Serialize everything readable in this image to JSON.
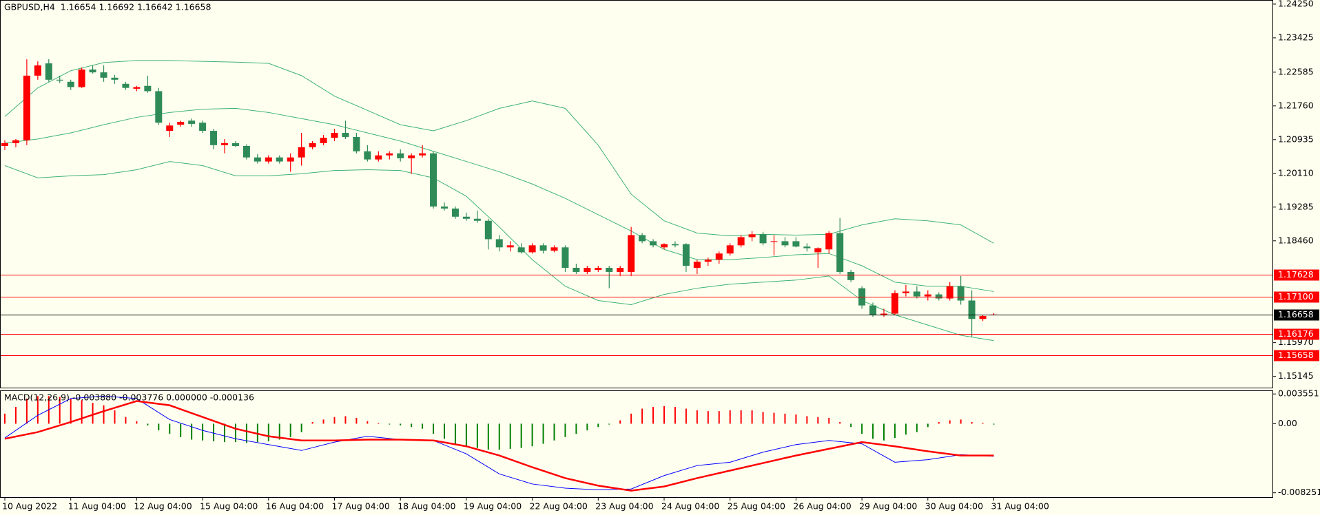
{
  "chart_data": [
    {
      "type": "candlestick",
      "title": "GBPUSD,H4  1.16654 1.16692 1.16642 1.16658",
      "up_color": "#ff0000",
      "down_color": "#2e8b57",
      "open": [
        1.2078,
        1.2085,
        1.2092,
        1.225,
        1.228,
        1.224,
        1.2235,
        1.2222,
        1.2265,
        1.2258,
        1.2245,
        1.223,
        1.2218,
        1.2225,
        1.2212,
        1.2115,
        1.213,
        1.214,
        1.2135,
        1.2115,
        1.208,
        1.2085,
        1.2078,
        1.205,
        1.204,
        1.205,
        1.204,
        1.205,
        1.2075,
        1.2085,
        1.2098,
        1.211,
        1.21,
        1.2065,
        1.2045,
        1.2055,
        1.206,
        1.2048,
        1.2055,
        1.206,
        1.193,
        1.1925,
        1.1905,
        1.19,
        1.1895,
        1.185,
        1.183,
        1.183,
        1.1818,
        1.1835,
        1.1822,
        1.183,
        1.178,
        1.177,
        1.1775,
        1.178,
        1.177,
        1.177,
        1.186,
        1.1845,
        1.183,
        1.1838,
        1.1838,
        1.178,
        1.1795,
        1.18,
        1.1815,
        1.1835,
        1.1855,
        1.1862,
        1.1845,
        1.1845,
        1.1845,
        1.1832,
        1.1818,
        1.1825,
        1.1865,
        1.177,
        1.173,
        1.1688,
        1.1665,
        1.1668,
        1.1718,
        1.1722,
        1.171,
        1.1715,
        1.1705,
        1.1735,
        1.17,
        1.1655,
        1.16654
      ],
      "high": [
        1.2092,
        1.2095,
        1.229,
        1.2285,
        1.229,
        1.225,
        1.224,
        1.227,
        1.2275,
        1.2275,
        1.2252,
        1.2235,
        1.2225,
        1.225,
        1.222,
        1.2135,
        1.214,
        1.2145,
        1.214,
        1.212,
        1.2095,
        1.209,
        1.2082,
        1.2058,
        1.2055,
        1.2055,
        1.206,
        1.211,
        1.209,
        1.2105,
        1.212,
        1.214,
        1.211,
        1.208,
        1.2065,
        1.2065,
        1.207,
        1.206,
        1.208,
        1.2065,
        1.194,
        1.193,
        1.1915,
        1.192,
        1.19,
        1.186,
        1.1845,
        1.184,
        1.184,
        1.184,
        1.1835,
        1.1835,
        1.179,
        1.1785,
        1.1785,
        1.1785,
        1.1785,
        1.188,
        1.1865,
        1.185,
        1.184,
        1.1845,
        1.184,
        1.18,
        1.1805,
        1.182,
        1.184,
        1.186,
        1.187,
        1.1868,
        1.186,
        1.1855,
        1.1855,
        1.184,
        1.183,
        1.187,
        1.1902,
        1.1775,
        1.1735,
        1.1695,
        1.168,
        1.1725,
        1.1738,
        1.1735,
        1.1725,
        1.172,
        1.1745,
        1.176,
        1.1725,
        1.1665,
        1.16692
      ],
      "low": [
        1.2068,
        1.2075,
        1.208,
        1.224,
        1.2235,
        1.2232,
        1.2215,
        1.222,
        1.2255,
        1.2235,
        1.223,
        1.2215,
        1.2212,
        1.2208,
        1.213,
        1.21,
        1.2125,
        1.2125,
        1.211,
        1.207,
        1.206,
        1.2075,
        1.2045,
        1.2035,
        1.2035,
        1.2035,
        1.2015,
        1.203,
        1.207,
        1.208,
        1.209,
        1.2095,
        1.206,
        1.204,
        1.204,
        1.2045,
        1.204,
        1.201,
        1.205,
        1.1925,
        1.192,
        1.19,
        1.1895,
        1.189,
        1.1825,
        1.182,
        1.182,
        1.1815,
        1.1815,
        1.1815,
        1.1818,
        1.177,
        1.1765,
        1.1765,
        1.177,
        1.173,
        1.176,
        1.176,
        1.184,
        1.183,
        1.1825,
        1.183,
        1.177,
        1.1765,
        1.1785,
        1.179,
        1.181,
        1.183,
        1.1845,
        1.1835,
        1.181,
        1.183,
        1.183,
        1.182,
        1.178,
        1.1815,
        1.1765,
        1.1745,
        1.168,
        1.166,
        1.166,
        1.1665,
        1.171,
        1.1705,
        1.17,
        1.17,
        1.17,
        1.169,
        1.161,
        1.165,
        1.16642
      ],
      "close": [
        1.2085,
        1.2092,
        1.225,
        1.2275,
        1.224,
        1.2238,
        1.2222,
        1.2265,
        1.2258,
        1.2245,
        1.224,
        1.222,
        1.2222,
        1.2212,
        1.2135,
        1.2128,
        1.2137,
        1.2132,
        1.2115,
        1.208,
        1.2085,
        1.2078,
        1.205,
        1.204,
        1.205,
        1.204,
        1.205,
        1.2075,
        1.2085,
        1.2098,
        1.211,
        1.21,
        1.2065,
        1.2045,
        1.2055,
        1.206,
        1.2048,
        1.2055,
        1.206,
        1.193,
        1.1925,
        1.1905,
        1.19,
        1.1895,
        1.185,
        1.183,
        1.1835,
        1.1818,
        1.1835,
        1.1822,
        1.183,
        1.178,
        1.177,
        1.178,
        1.178,
        1.177,
        1.178,
        1.186,
        1.1845,
        1.1835,
        1.1838,
        1.1835,
        1.1785,
        1.1795,
        1.18,
        1.1815,
        1.1835,
        1.1855,
        1.1862,
        1.184,
        1.1845,
        1.1835,
        1.1832,
        1.1828,
        1.1828,
        1.1865,
        1.177,
        1.175,
        1.1688,
        1.1665,
        1.1668,
        1.1718,
        1.1722,
        1.171,
        1.1715,
        1.1705,
        1.1735,
        1.17,
        1.1655,
        1.1662,
        1.16658
      ],
      "series": [
        {
          "color": "#3cb371",
          "x": [
            0,
            3,
            6,
            9,
            12,
            15,
            18,
            21,
            24,
            27,
            30,
            33,
            36,
            39,
            42,
            45,
            48,
            51,
            54,
            57,
            60,
            63,
            66,
            69,
            72,
            75,
            78,
            81,
            84,
            87,
            90
          ],
          "values": [
            1.215,
            1.222,
            1.2262,
            1.2282,
            1.2287,
            1.2287,
            1.2285,
            1.2283,
            1.228,
            1.225,
            1.22,
            1.2165,
            1.213,
            1.2115,
            1.214,
            1.217,
            1.2188,
            1.217,
            1.208,
            1.196,
            1.1895,
            1.1865,
            1.1858,
            1.1862,
            1.186,
            1.1862,
            1.1885,
            1.19,
            1.1895,
            1.1885,
            1.184
          ]
        },
        {
          "color": "#3cb371",
          "x": [
            0,
            3,
            6,
            9,
            12,
            15,
            18,
            21,
            24,
            27,
            30,
            33,
            36,
            39,
            42,
            45,
            48,
            51,
            54,
            57,
            60,
            63,
            66,
            69,
            72,
            75,
            78,
            81,
            84,
            87,
            90
          ],
          "values": [
            1.2085,
            1.2095,
            1.211,
            1.213,
            1.2148,
            1.216,
            1.2168,
            1.217,
            1.216,
            1.2145,
            1.213,
            1.211,
            1.209,
            1.2065,
            1.204,
            1.2015,
            1.1985,
            1.195,
            1.191,
            1.187,
            1.1825,
            1.18,
            1.18,
            1.1805,
            1.1812,
            1.1815,
            1.1785,
            1.1745,
            1.1735,
            1.1735,
            1.1722
          ]
        },
        {
          "color": "#3cb371",
          "x": [
            0,
            3,
            6,
            9,
            12,
            15,
            18,
            21,
            24,
            27,
            30,
            33,
            36,
            39,
            42,
            45,
            48,
            51,
            54,
            57,
            60,
            63,
            66,
            69,
            72,
            75,
            78,
            81,
            84,
            87,
            90
          ],
          "values": [
            1.203,
            1.2,
            1.2005,
            1.2008,
            1.202,
            1.204,
            1.203,
            1.2005,
            1.2005,
            1.201,
            1.2018,
            1.202,
            1.2018,
            1.2,
            1.1955,
            1.188,
            1.18,
            1.1735,
            1.17,
            1.169,
            1.1715,
            1.173,
            1.174,
            1.1745,
            1.175,
            1.176,
            1.17,
            1.1665,
            1.164,
            1.1615,
            1.1602
          ]
        }
      ],
      "hlines": [
        {
          "value": 1.17628,
          "color": "#ff0000"
        },
        {
          "value": 1.171,
          "label": "1.17100",
          "color": "#ff0000"
        },
        {
          "value": 1.16658,
          "color": "#000000"
        },
        {
          "value": 1.16176,
          "color": "#ff0000"
        },
        {
          "value": 1.15658,
          "color": "#ff0000"
        }
      ],
      "ylim": [
        1.1487,
        1.2435
      ],
      "yticks": [
        {
          "value": 1.2425,
          "label": "1.24250"
        },
        1.23425,
        1.22585,
        {
          "value": 1.2176,
          "label": "1.21760"
        },
        1.20935,
        {
          "value": 1.2011,
          "label": "1.20110"
        },
        1.19285,
        {
          "value": 1.1846,
          "label": "1.18460"
        },
        {
          "value": 1.1597,
          "label": "1.15970"
        },
        1.15145
      ]
    },
    {
      "type": "macd",
      "title": "MACD(12,26,9) -0.003880 -0.003776 0.000000 -0.000136",
      "categories": [
        "10 Aug 2022",
        null,
        null,
        null,
        null,
        null,
        "11 Aug 04:00",
        null,
        null,
        null,
        null,
        null,
        "12 Aug 04:00",
        null,
        null,
        null,
        null,
        null,
        "15 Aug 04:00",
        null,
        null,
        null,
        null,
        null,
        "16 Aug 04:00",
        null,
        null,
        null,
        null,
        null,
        "17 Aug 04:00",
        null,
        null,
        null,
        null,
        null,
        "18 Aug 04:00",
        null,
        null,
        null,
        null,
        null,
        "19 Aug 04:00",
        null,
        null,
        null,
        null,
        null,
        "22 Aug 04:00",
        null,
        null,
        null,
        null,
        null,
        "23 Aug 04:00",
        null,
        null,
        null,
        null,
        null,
        "24 Aug 04:00",
        null,
        null,
        null,
        null,
        null,
        "25 Aug 04:00",
        null,
        null,
        null,
        null,
        null,
        "26 Aug 04:00",
        null,
        null,
        null,
        null,
        null,
        "29 Aug 04:00",
        null,
        null,
        null,
        null,
        null,
        "30 Aug 04:00",
        null,
        null,
        null,
        null,
        null,
        "31 Aug 04:00"
      ],
      "positive_color": "#ff0000",
      "negative_color": "#008000",
      "values": [
        0.0012,
        0.002,
        0.003,
        0.0033,
        0.0033,
        0.0032,
        0.003,
        0.0028,
        0.0025,
        0.0022,
        0.0016,
        0.0008,
        0.0003,
        -0.0002,
        -0.0008,
        -0.0012,
        -0.0016,
        -0.0019,
        -0.002,
        -0.0021,
        -0.0022,
        -0.0022,
        -0.0023,
        -0.0022,
        -0.0021,
        -0.0019,
        -0.0016,
        -0.001,
        0.0002,
        0.0005,
        0.0008,
        0.0009,
        0.0007,
        0.0003,
        0.0001,
        -0.0001,
        -0.0002,
        -0.0004,
        -0.0006,
        -0.0012,
        -0.0018,
        -0.0024,
        -0.0027,
        -0.0029,
        -0.0031,
        -0.0031,
        -0.003,
        -0.0029,
        -0.0027,
        -0.0024,
        -0.002,
        -0.0016,
        -0.0012,
        -0.0008,
        -0.0004,
        -0.0001,
        0.0004,
        0.0012,
        0.0018,
        0.002,
        0.0021,
        0.002,
        0.0018,
        0.0016,
        0.0015,
        0.0015,
        0.0016,
        0.0016,
        0.0016,
        0.0014,
        0.0013,
        0.0012,
        0.0011,
        0.0009,
        0.0008,
        0.0007,
        0.0002,
        -0.0004,
        -0.0012,
        -0.0018,
        -0.002,
        -0.0017,
        -0.0013,
        -0.001,
        -0.0004,
        0.0002,
        0.0004,
        0.0005,
        0.0002,
        0.0001,
        -0.0001
      ],
      "series": [
        {
          "color": "#0000ff",
          "x": [
            0,
            3,
            6,
            9,
            12,
            15,
            18,
            21,
            24,
            27,
            30,
            33,
            36,
            39,
            42,
            45,
            48,
            51,
            54,
            57,
            60,
            63,
            66,
            69,
            72,
            75,
            78,
            81,
            84,
            87,
            90
          ],
          "values": [
            -0.0017,
            0.001,
            0.003,
            0.0033,
            0.003,
            0.0005,
            -0.0008,
            -0.0018,
            -0.0025,
            -0.0032,
            -0.0022,
            -0.0015,
            -0.0019,
            -0.002,
            -0.0036,
            -0.006,
            -0.0072,
            -0.0077,
            -0.0079,
            -0.0078,
            -0.0062,
            -0.005,
            -0.0046,
            -0.0034,
            -0.0025,
            -0.002,
            -0.0024,
            -0.0046,
            -0.0043,
            -0.0037,
            -0.0039
          ]
        },
        {
          "color": "#ff0000",
          "x": [
            0,
            3,
            6,
            9,
            12,
            15,
            18,
            21,
            24,
            27,
            30,
            33,
            36,
            39,
            42,
            45,
            48,
            51,
            54,
            57,
            60,
            63,
            66,
            69,
            72,
            75,
            78,
            81,
            84,
            87,
            90
          ],
          "values": [
            -0.0018,
            -0.001,
            0.0002,
            0.0015,
            0.0027,
            0.0022,
            0.0008,
            -0.0006,
            -0.0015,
            -0.002,
            -0.002,
            -0.0019,
            -0.0019,
            -0.002,
            -0.0027,
            -0.0038,
            -0.0052,
            -0.0065,
            -0.0074,
            -0.008,
            -0.0075,
            -0.0065,
            -0.0056,
            -0.0047,
            -0.0038,
            -0.003,
            -0.0022,
            -0.0027,
            -0.0033,
            -0.0038,
            -0.0038
          ]
        }
      ],
      "ylim": [
        -0.00885,
        0.00398
      ],
      "yticks": [
        0.003551,
        {
          "value": 0,
          "label": "0.00"
        },
        -0.008251
      ]
    }
  ]
}
